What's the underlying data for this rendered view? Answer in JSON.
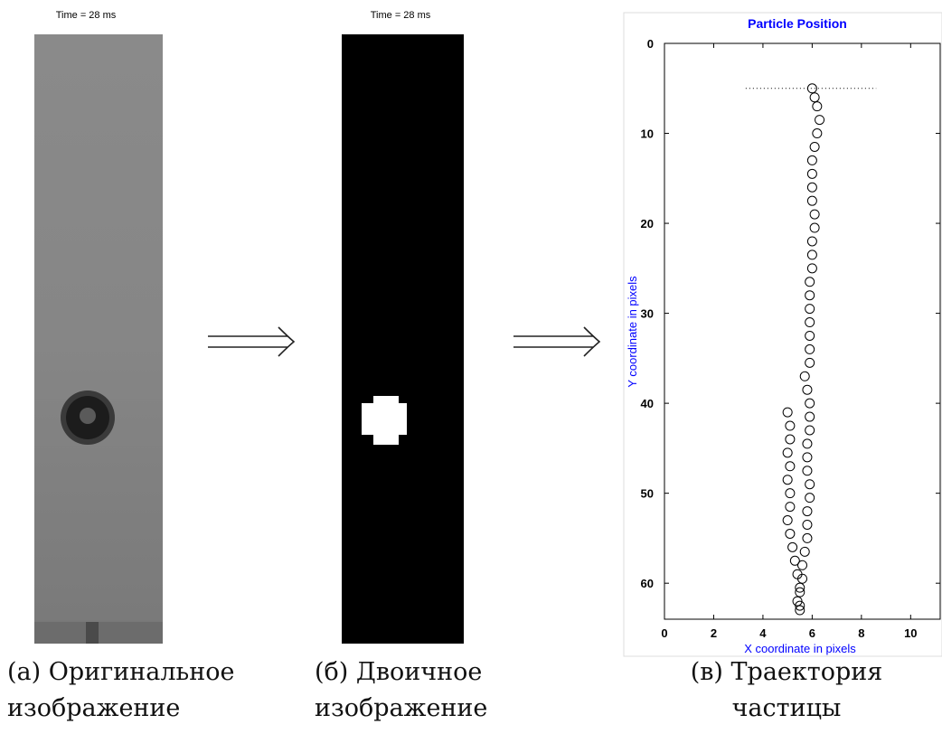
{
  "panels": [
    {
      "title": "Time = 28 ms",
      "caption": [
        "(а) Оригинальное",
        "изображение"
      ]
    },
    {
      "title": "Time = 28 ms",
      "caption": [
        "(б) Двоичное",
        "изображение"
      ]
    },
    {
      "caption": [
        "(в) Траектория",
        "частицы"
      ]
    }
  ],
  "chart_data": {
    "type": "scatter",
    "title": "Particle Position",
    "xlabel": "X coordinate in pixels",
    "ylabel": "Y coordinate in pixels",
    "x": [
      6.0,
      6.1,
      6.2,
      6.3,
      6.2,
      6.1,
      6.0,
      6.0,
      6.0,
      6.0,
      6.1,
      6.1,
      6.0,
      6.0,
      6.0,
      5.9,
      5.9,
      5.9,
      5.9,
      5.9,
      5.9,
      5.9,
      5.7,
      5.8,
      5.9,
      5.9,
      5.9,
      5.8,
      5.8,
      5.8,
      5.9,
      5.9,
      5.8,
      5.8,
      5.8,
      5.7,
      5.6,
      5.6,
      5.5,
      5.5,
      5.0,
      5.1,
      5.1,
      5.0,
      5.1,
      5.0,
      5.1,
      5.1,
      5.0,
      5.1,
      5.2,
      5.3,
      5.4,
      5.5,
      5.4,
      5.5
    ],
    "y": [
      5,
      6,
      7,
      8.5,
      10,
      11.5,
      13,
      14.5,
      16,
      17.5,
      19,
      20.5,
      22,
      23.5,
      25,
      26.5,
      28,
      29.5,
      31,
      32.5,
      34,
      35.5,
      37,
      38.5,
      40,
      41.5,
      43,
      44.5,
      46,
      47.5,
      49,
      50.5,
      52,
      53.5,
      55,
      56.5,
      58,
      59.5,
      61,
      62.5,
      41,
      42.5,
      44,
      45.5,
      47,
      48.5,
      50,
      51.5,
      53,
      54.5,
      56,
      57.5,
      59,
      60.5,
      62,
      63
    ],
    "xlim": [
      0,
      11.2
    ],
    "ylim": [
      0,
      64
    ],
    "y_inverted": true,
    "xticks": [
      0,
      2,
      4,
      6,
      8,
      10
    ],
    "yticks": [
      0,
      10,
      20,
      30,
      40,
      50,
      60
    ],
    "color": "#000000",
    "label_color": "#0000ff",
    "reference_line": {
      "y": 5,
      "xlim": [
        3.3,
        8.6
      ]
    }
  }
}
